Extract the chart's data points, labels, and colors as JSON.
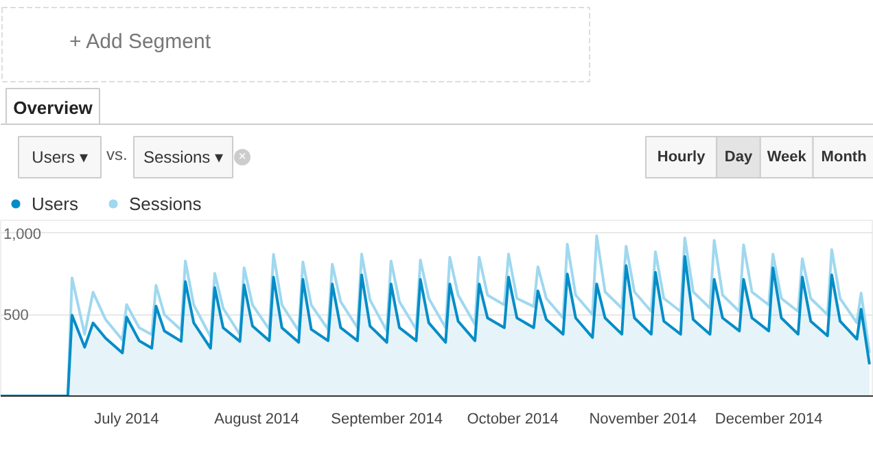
{
  "chart_data": {
    "type": "line",
    "x": [
      "2014-06-01",
      "2014-06-17",
      "2014-06-18",
      "2014-06-21",
      "2014-06-23",
      "2014-06-26",
      "2014-06-30",
      "2014-07-01",
      "2014-07-04",
      "2014-07-07",
      "2014-07-08",
      "2014-07-10",
      "2014-07-14",
      "2014-07-15",
      "2014-07-17",
      "2014-07-21",
      "2014-07-22",
      "2014-07-24",
      "2014-07-28",
      "2014-07-29",
      "2014-07-31",
      "2014-08-04",
      "2014-08-05",
      "2014-08-07",
      "2014-08-11",
      "2014-08-12",
      "2014-08-14",
      "2014-08-18",
      "2014-08-19",
      "2014-08-21",
      "2014-08-25",
      "2014-08-26",
      "2014-08-28",
      "2014-09-01",
      "2014-09-02",
      "2014-09-04",
      "2014-09-08",
      "2014-09-09",
      "2014-09-11",
      "2014-09-15",
      "2014-09-16",
      "2014-09-18",
      "2014-09-22",
      "2014-09-23",
      "2014-09-25",
      "2014-09-29",
      "2014-09-30",
      "2014-10-02",
      "2014-10-06",
      "2014-10-07",
      "2014-10-09",
      "2014-10-13",
      "2014-10-14",
      "2014-10-16",
      "2014-10-20",
      "2014-10-21",
      "2014-10-23",
      "2014-10-27",
      "2014-10-28",
      "2014-10-30",
      "2014-11-03",
      "2014-11-04",
      "2014-11-06",
      "2014-11-10",
      "2014-11-11",
      "2014-11-13",
      "2014-11-17",
      "2014-11-18",
      "2014-11-20",
      "2014-11-24",
      "2014-11-25",
      "2014-11-27",
      "2014-12-01",
      "2014-12-02",
      "2014-12-04",
      "2014-12-08",
      "2014-12-09",
      "2014-12-11",
      "2014-12-15",
      "2014-12-16",
      "2014-12-18",
      "2014-12-22",
      "2014-12-23",
      "2014-12-25"
    ],
    "series": [
      {
        "name": "Users",
        "type": "area",
        "color": "#058dc7",
        "values": [
          0,
          0,
          497,
          300,
          449,
          355,
          265,
          485,
          340,
          294,
          553,
          400,
          336,
          703,
          450,
          294,
          667,
          420,
          336,
          683,
          430,
          340,
          731,
          420,
          330,
          717,
          410,
          340,
          689,
          420,
          340,
          745,
          430,
          330,
          689,
          420,
          340,
          717,
          450,
          330,
          689,
          460,
          340,
          689,
          480,
          420,
          731,
          480,
          420,
          646,
          470,
          380,
          750,
          480,
          360,
          689,
          480,
          380,
          802,
          480,
          380,
          760,
          460,
          380,
          858,
          470,
          380,
          717,
          480,
          400,
          717,
          480,
          400,
          788,
          480,
          380,
          731,
          460,
          370,
          745,
          460,
          350,
          534,
          195
        ]
      },
      {
        "name": "Sessions",
        "color": "#9fd8ef",
        "values": [
          0,
          0,
          726,
          380,
          638,
          470,
          345,
          562,
          420,
          378,
          680,
          500,
          406,
          830,
          560,
          364,
          754,
          540,
          378,
          788,
          560,
          410,
          871,
          560,
          400,
          824,
          560,
          410,
          810,
          580,
          420,
          872,
          590,
          400,
          830,
          580,
          410,
          836,
          600,
          420,
          853,
          620,
          440,
          853,
          620,
          560,
          872,
          600,
          550,
          794,
          600,
          480,
          933,
          620,
          500,
          985,
          640,
          540,
          921,
          640,
          520,
          887,
          600,
          520,
          971,
          640,
          540,
          957,
          620,
          520,
          929,
          640,
          560,
          872,
          600,
          520,
          844,
          600,
          500,
          900,
          600,
          450,
          633,
          265
        ]
      }
    ],
    "xlim": [
      "2014-06-01",
      "2014-12-26"
    ],
    "xticks": [
      {
        "value": "2014-07-01",
        "label": "July 2014"
      },
      {
        "value": "2014-08-01",
        "label": "August 2014"
      },
      {
        "value": "2014-09-01",
        "label": "September 2014"
      },
      {
        "value": "2014-10-01",
        "label": "October 2014"
      },
      {
        "value": "2014-11-01",
        "label": "November 2014"
      },
      {
        "value": "2014-12-01",
        "label": "December 2014"
      }
    ],
    "ylim": [
      0,
      1080
    ],
    "yticks": [
      500,
      {
        "value": 1000,
        "label": "1,000"
      }
    ],
    "grid": "y",
    "legend": "top left",
    "annotations": [
      "+ Add Segment",
      "Overview",
      "Users ▾",
      "vs.",
      "Sessions ▾",
      "×",
      "Hourly",
      "Day",
      "Week",
      "Month"
    ]
  }
}
